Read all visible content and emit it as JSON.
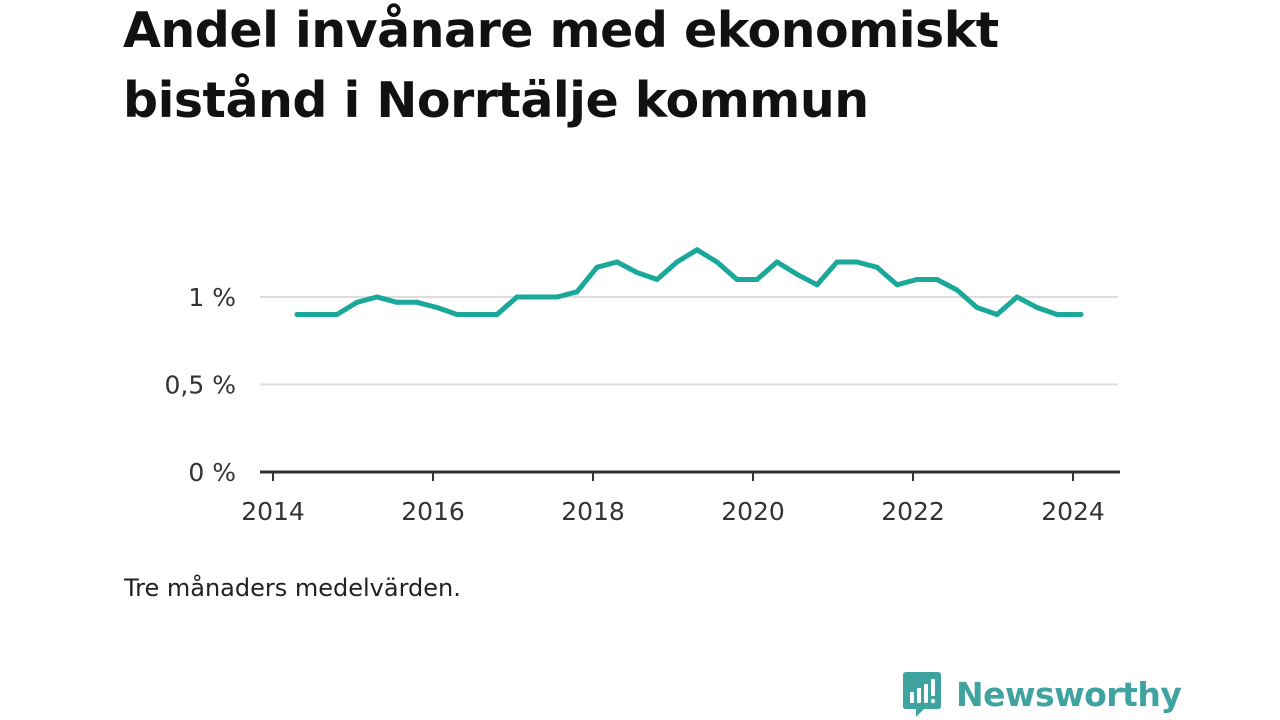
{
  "title": "Andel invånare med ekonomiskt bistånd i Norrtälje kommun",
  "note": "Tre månaders medelvärden.",
  "brand": "Newsworthy",
  "colors": {
    "line": "#1aa89a",
    "grid": "#dddddd",
    "axis": "#333333",
    "brand": "#3fa3a0"
  },
  "icons": [
    "newsworthy-logo-icon"
  ],
  "chart_data": {
    "type": "line",
    "title": "Andel invånare med ekonomiskt bistånd i Norrtälje kommun",
    "xlabel": "",
    "ylabel": "",
    "x_ticks": [
      "2014",
      "2016",
      "2018",
      "2020",
      "2022",
      "2024"
    ],
    "y_ticks": [
      {
        "value": 0,
        "label": "0 %"
      },
      {
        "value": 0.5,
        "label": "0,5 %"
      },
      {
        "value": 1,
        "label": "1 %"
      }
    ],
    "xlim": [
      2014,
      2024.6
    ],
    "ylim": [
      0,
      1.3
    ],
    "grid": true,
    "series": [
      {
        "x": [
          2014.3,
          2014.55,
          2014.8,
          2015.05,
          2015.3,
          2015.55,
          2015.8,
          2016.05,
          2016.3,
          2016.55,
          2016.8,
          2017.05,
          2017.3,
          2017.55,
          2017.8,
          2018.05,
          2018.3,
          2018.55,
          2018.8,
          2019.05,
          2019.3,
          2019.55,
          2019.8,
          2020.05,
          2020.3,
          2020.55,
          2020.8,
          2021.05,
          2021.3,
          2021.55,
          2021.8,
          2022.05,
          2022.3,
          2022.55,
          2022.8,
          2023.05,
          2023.3,
          2023.55,
          2023.8,
          2024.1
        ],
        "y": [
          0.9,
          0.9,
          0.9,
          0.97,
          1.0,
          0.97,
          0.97,
          0.94,
          0.9,
          0.9,
          0.9,
          1.0,
          1.0,
          1.0,
          1.03,
          1.17,
          1.2,
          1.14,
          1.1,
          1.2,
          1.27,
          1.2,
          1.1,
          1.1,
          1.2,
          1.13,
          1.07,
          1.2,
          1.2,
          1.17,
          1.07,
          1.1,
          1.1,
          1.04,
          0.94,
          0.9,
          1.0,
          0.94,
          0.9,
          0.9
        ]
      }
    ]
  }
}
